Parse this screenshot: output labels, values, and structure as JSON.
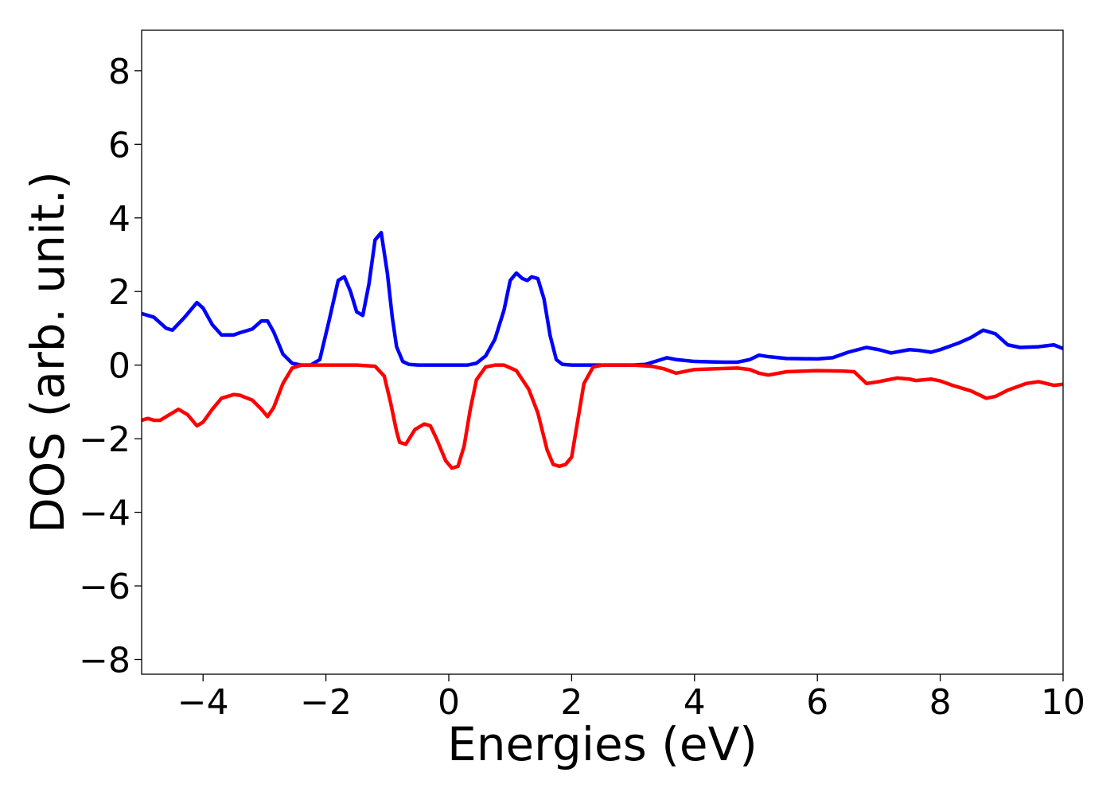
{
  "chart_data": {
    "type": "line",
    "title": "",
    "xlabel": "Energies (eV)",
    "ylabel": "DOS (arb. unit.)",
    "xlim": [
      -5,
      10
    ],
    "ylim": [
      -8.4,
      9.1
    ],
    "grid": false,
    "legend": "none",
    "x_ticks": [
      -4,
      -2,
      0,
      2,
      4,
      6,
      8,
      10
    ],
    "x_tick_labels": [
      "−4",
      "−2",
      "0",
      "2",
      "4",
      "6",
      "8",
      "10"
    ],
    "y_ticks": [
      8,
      6,
      4,
      2,
      0,
      -2,
      -4,
      -6,
      -8
    ],
    "y_tick_labels": [
      "8",
      "6",
      "4",
      "2",
      "0",
      "−2",
      "−4",
      "−6",
      "−8"
    ],
    "series": [
      {
        "color": "#0000ff",
        "x": [
          -5.0,
          -4.8,
          -4.6,
          -4.5,
          -4.3,
          -4.1,
          -4.0,
          -3.85,
          -3.7,
          -3.5,
          -3.4,
          -3.2,
          -3.05,
          -2.95,
          -2.85,
          -2.7,
          -2.55,
          -2.4,
          -2.25,
          -2.1,
          -1.95,
          -1.8,
          -1.7,
          -1.6,
          -1.5,
          -1.4,
          -1.3,
          -1.2,
          -1.1,
          -1.0,
          -0.92,
          -0.85,
          -0.75,
          -0.65,
          -0.5,
          -0.4,
          -0.3,
          -0.1,
          0.1,
          0.3,
          0.45,
          0.6,
          0.75,
          0.9,
          1.0,
          1.1,
          1.2,
          1.28,
          1.35,
          1.45,
          1.55,
          1.65,
          1.75,
          1.85,
          2.0,
          2.5,
          3.0,
          3.2,
          3.4,
          3.55,
          3.7,
          4.0,
          4.5,
          4.7,
          4.9,
          5.05,
          5.2,
          5.5,
          6.0,
          6.25,
          6.5,
          6.8,
          7.0,
          7.2,
          7.5,
          7.65,
          7.85,
          8.0,
          8.3,
          8.5,
          8.7,
          8.9,
          9.1,
          9.3,
          9.6,
          9.85,
          10.0
        ],
        "y": [
          1.4,
          1.3,
          1.0,
          0.95,
          1.3,
          1.7,
          1.55,
          1.1,
          0.82,
          0.82,
          0.88,
          0.98,
          1.2,
          1.2,
          0.9,
          0.3,
          0.05,
          0.0,
          0.0,
          0.15,
          1.2,
          2.3,
          2.4,
          2.0,
          1.45,
          1.35,
          2.2,
          3.4,
          3.6,
          2.5,
          1.3,
          0.5,
          0.1,
          0.02,
          0.0,
          0.0,
          0.0,
          0.0,
          0.0,
          0.0,
          0.05,
          0.25,
          0.7,
          1.5,
          2.3,
          2.5,
          2.35,
          2.3,
          2.4,
          2.35,
          1.8,
          0.8,
          0.15,
          0.02,
          0.0,
          0.0,
          0.0,
          0.02,
          0.12,
          0.2,
          0.15,
          0.1,
          0.08,
          0.08,
          0.15,
          0.27,
          0.23,
          0.18,
          0.17,
          0.2,
          0.35,
          0.48,
          0.42,
          0.33,
          0.42,
          0.4,
          0.35,
          0.42,
          0.6,
          0.75,
          0.95,
          0.85,
          0.55,
          0.48,
          0.5,
          0.55,
          0.45
        ]
      },
      {
        "color": "#ff0000",
        "x": [
          -5.0,
          -4.9,
          -4.8,
          -4.7,
          -4.55,
          -4.4,
          -4.25,
          -4.1,
          -4.0,
          -3.85,
          -3.7,
          -3.5,
          -3.4,
          -3.2,
          -3.05,
          -2.95,
          -2.85,
          -2.7,
          -2.55,
          -2.4,
          -2.0,
          -1.5,
          -1.2,
          -1.05,
          -0.95,
          -0.85,
          -0.8,
          -0.7,
          -0.55,
          -0.4,
          -0.3,
          -0.2,
          -0.05,
          0.05,
          0.15,
          0.25,
          0.35,
          0.45,
          0.6,
          0.75,
          0.9,
          1.1,
          1.3,
          1.45,
          1.6,
          1.7,
          1.8,
          1.9,
          2.0,
          2.1,
          2.2,
          2.35,
          2.5,
          3.0,
          3.3,
          3.5,
          3.7,
          4.0,
          4.7,
          4.9,
          5.05,
          5.2,
          5.5,
          6.0,
          6.4,
          6.6,
          6.8,
          7.0,
          7.3,
          7.5,
          7.6,
          7.85,
          8.0,
          8.2,
          8.5,
          8.75,
          8.9,
          9.1,
          9.4,
          9.6,
          9.85,
          10.0
        ],
        "y": [
          -1.5,
          -1.45,
          -1.5,
          -1.5,
          -1.35,
          -1.2,
          -1.35,
          -1.65,
          -1.55,
          -1.2,
          -0.9,
          -0.8,
          -0.82,
          -0.95,
          -1.2,
          -1.4,
          -1.15,
          -0.5,
          -0.08,
          0.0,
          0.0,
          0.0,
          -0.03,
          -0.3,
          -1.0,
          -1.8,
          -2.1,
          -2.15,
          -1.75,
          -1.6,
          -1.65,
          -2.0,
          -2.6,
          -2.8,
          -2.75,
          -2.2,
          -1.2,
          -0.4,
          -0.05,
          0.0,
          0.0,
          -0.15,
          -0.65,
          -1.3,
          -2.3,
          -2.7,
          -2.75,
          -2.7,
          -2.5,
          -1.5,
          -0.5,
          -0.05,
          0.0,
          0.0,
          -0.03,
          -0.1,
          -0.22,
          -0.12,
          -0.08,
          -0.12,
          -0.22,
          -0.27,
          -0.18,
          -0.15,
          -0.16,
          -0.18,
          -0.5,
          -0.45,
          -0.35,
          -0.38,
          -0.42,
          -0.38,
          -0.43,
          -0.55,
          -0.7,
          -0.9,
          -0.85,
          -0.68,
          -0.5,
          -0.45,
          -0.55,
          -0.52
        ]
      }
    ]
  }
}
